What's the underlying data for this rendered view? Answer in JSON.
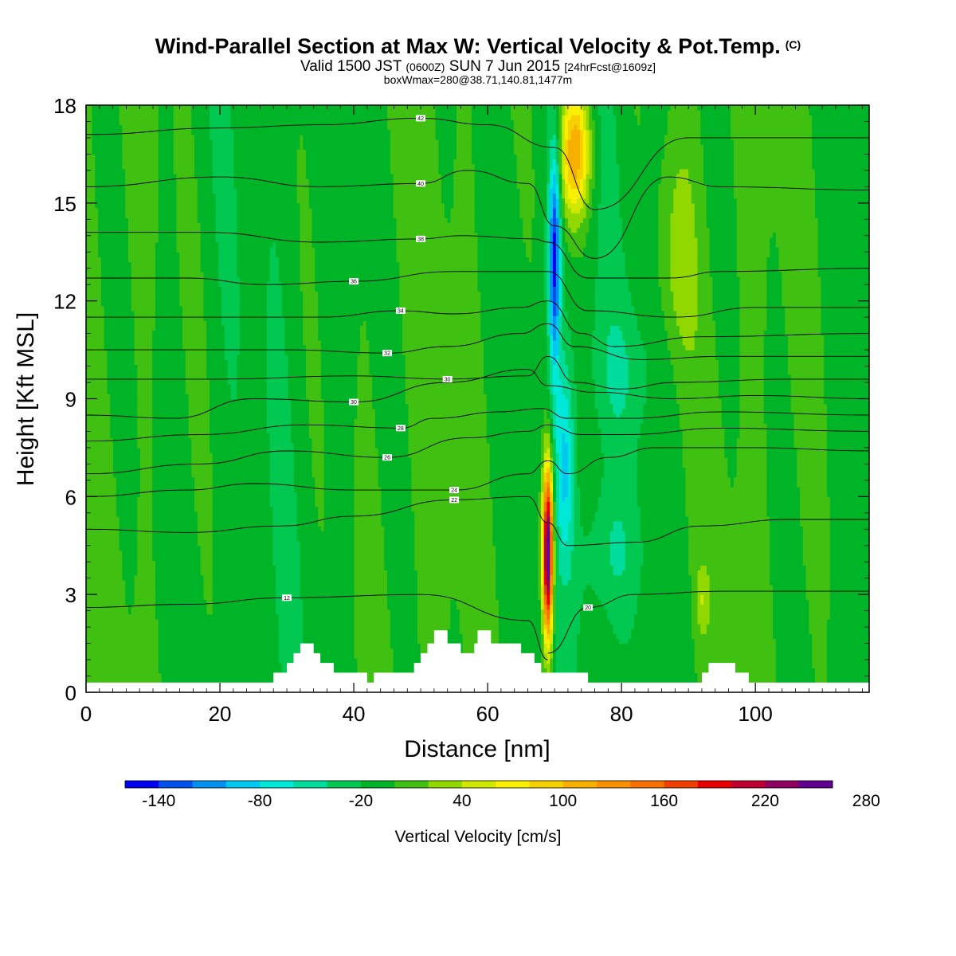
{
  "header": {
    "title": "Wind-Parallel Section at Max W: Vertical Velocity & Pot.Temp.",
    "copyright": "(C)",
    "valid_prefix": "Valid 1500 JST",
    "valid_utc": "(0600Z)",
    "valid_date": "SUN 7 Jun 2015",
    "forecast": "[24hrFcst@1609z]",
    "boxwmax": "boxWmax=280@38.71,140.81,1477m"
  },
  "chart_data": {
    "type": "heatmap",
    "title": "Wind-Parallel Section at Max W: Vertical Velocity & Pot.Temp.",
    "xlabel": "Distance [nm]",
    "ylabel": "Height [Kft MSL]",
    "xlim": [
      0,
      117
    ],
    "ylim": [
      0,
      18
    ],
    "x_ticks": [
      "0",
      "20",
      "40",
      "60",
      "80",
      "100"
    ],
    "y_ticks": [
      "0",
      "3",
      "6",
      "9",
      "12",
      "15",
      "18"
    ],
    "colorbar": {
      "title": "Vertical Velocity [cm/s]",
      "labels": [
        "-140",
        "-80",
        "-20",
        "40",
        "100",
        "160",
        "220",
        "280"
      ],
      "colors": [
        "#0000f0",
        "#0050f0",
        "#0090f0",
        "#00c8f0",
        "#00e8d8",
        "#00dc9c",
        "#00c850",
        "#00b428",
        "#40c010",
        "#90d800",
        "#d0e800",
        "#f8f000",
        "#f8d000",
        "#f8b000",
        "#f89000",
        "#f87000",
        "#f04000",
        "#e80000",
        "#c00030",
        "#900060",
        "#600090"
      ]
    },
    "background_value": -5,
    "features": [
      {
        "name": "strong updraft",
        "x": 69,
        "y_range": [
          1.0,
          7.8
        ],
        "peak": 280
      },
      {
        "name": "upper updraft",
        "x": 73,
        "y_range": [
          14.0,
          18.0
        ],
        "peak": 130
      },
      {
        "name": "downdraft",
        "x": 70,
        "y_range": [
          9.0,
          17.7
        ],
        "peak": -130
      },
      {
        "name": "weak updraft",
        "x": 88,
        "y_range": [
          9.0,
          17.0
        ],
        "peak": 40
      },
      {
        "name": "weak updraft",
        "x": 92,
        "y_range": [
          1.5,
          3.5
        ],
        "peak": 40
      }
    ],
    "terrain": [
      [
        0,
        0.3
      ],
      [
        28,
        0.3
      ],
      [
        28,
        0.6
      ],
      [
        30,
        0.6
      ],
      [
        30,
        0.9
      ],
      [
        31,
        0.9
      ],
      [
        31,
        1.2
      ],
      [
        32,
        1.2
      ],
      [
        32,
        1.5
      ],
      [
        34,
        1.5
      ],
      [
        34,
        1.2
      ],
      [
        35,
        1.2
      ],
      [
        35,
        0.9
      ],
      [
        37,
        0.9
      ],
      [
        37,
        0.6
      ],
      [
        42,
        0.6
      ],
      [
        42,
        0.3
      ],
      [
        43,
        0.3
      ],
      [
        43,
        0.6
      ],
      [
        49,
        0.6
      ],
      [
        49,
        0.9
      ],
      [
        50,
        0.9
      ],
      [
        50,
        1.2
      ],
      [
        51,
        1.2
      ],
      [
        51,
        1.5
      ],
      [
        52,
        1.5
      ],
      [
        52,
        1.9
      ],
      [
        54,
        1.9
      ],
      [
        54,
        1.5
      ],
      [
        56,
        1.5
      ],
      [
        56,
        1.2
      ],
      [
        58,
        1.2
      ],
      [
        58,
        1.5
      ],
      [
        58.5,
        1.5
      ],
      [
        58.5,
        1.9
      ],
      [
        60.5,
        1.9
      ],
      [
        60.5,
        1.5
      ],
      [
        65,
        1.5
      ],
      [
        65,
        1.2
      ],
      [
        67,
        1.2
      ],
      [
        67,
        0.9
      ],
      [
        68,
        0.9
      ],
      [
        68,
        0.6
      ],
      [
        75,
        0.6
      ],
      [
        75,
        0.3
      ],
      [
        92,
        0.3
      ],
      [
        92,
        0.6
      ],
      [
        93,
        0.6
      ],
      [
        93,
        0.9
      ],
      [
        97,
        0.9
      ],
      [
        97,
        0.6
      ],
      [
        99,
        0.6
      ],
      [
        99,
        0.3
      ],
      [
        117,
        0.3
      ]
    ],
    "theta_contours": [
      {
        "label": "12",
        "points": [
          [
            0,
            2.6
          ],
          [
            15,
            2.7
          ],
          [
            30,
            2.9
          ],
          [
            50,
            3.0
          ],
          [
            66,
            2.2
          ],
          [
            69,
            1.0
          ]
        ]
      },
      {
        "label": "20",
        "points": [
          [
            69,
            1.2
          ],
          [
            75,
            2.6
          ],
          [
            82,
            3.0
          ],
          [
            95,
            3.1
          ],
          [
            117,
            3.1
          ]
        ]
      },
      {
        "label": "22",
        "points": [
          [
            0,
            5.0
          ],
          [
            15,
            4.9
          ],
          [
            29,
            5.1
          ],
          [
            40,
            5.4
          ],
          [
            55,
            5.9
          ],
          [
            66,
            6.0
          ],
          [
            69,
            5.2
          ],
          [
            72,
            4.5
          ],
          [
            82,
            4.6
          ],
          [
            92,
            5.1
          ],
          [
            105,
            5.3
          ],
          [
            117,
            5.3
          ]
        ]
      },
      {
        "label": "24",
        "points": [
          [
            0,
            6.0
          ],
          [
            15,
            6.2
          ],
          [
            25,
            6.4
          ],
          [
            40,
            6.2
          ],
          [
            55,
            6.2
          ],
          [
            66,
            6.7
          ],
          [
            69,
            7.1
          ],
          [
            72,
            6.7
          ],
          [
            78,
            7.2
          ],
          [
            85,
            7.5
          ],
          [
            100,
            7.5
          ],
          [
            117,
            7.4
          ]
        ]
      },
      {
        "label": "26",
        "points": [
          [
            0,
            6.7
          ],
          [
            17,
            7.0
          ],
          [
            30,
            7.4
          ],
          [
            45,
            7.2
          ],
          [
            57,
            7.8
          ],
          [
            66,
            8.0
          ],
          [
            69,
            8.2
          ],
          [
            74,
            7.9
          ],
          [
            81,
            7.9
          ],
          [
            95,
            8.1
          ],
          [
            117,
            8.0
          ]
        ]
      },
      {
        "label": "28",
        "points": [
          [
            0,
            7.7
          ],
          [
            17,
            7.9
          ],
          [
            33,
            8.2
          ],
          [
            47,
            8.1
          ],
          [
            52,
            8.4
          ],
          [
            62,
            8.6
          ],
          [
            68,
            8.7
          ],
          [
            72,
            8.4
          ],
          [
            81,
            8.4
          ],
          [
            95,
            8.6
          ],
          [
            117,
            8.5
          ]
        ]
      },
      {
        "label": "30",
        "points": [
          [
            0,
            8.5
          ],
          [
            13,
            8.4
          ],
          [
            25,
            9.0
          ],
          [
            40,
            8.9
          ],
          [
            54,
            9.5
          ],
          [
            66,
            9.9
          ],
          [
            69,
            9.4
          ],
          [
            76,
            9.2
          ],
          [
            88,
            9.0
          ],
          [
            100,
            9.1
          ],
          [
            117,
            9.0
          ]
        ]
      },
      {
        "label": "30",
        "points": [
          [
            0,
            9.6
          ],
          [
            20,
            9.6
          ],
          [
            40,
            9.7
          ],
          [
            54,
            9.6
          ],
          [
            66,
            9.7
          ],
          [
            69,
            10.3
          ],
          [
            73,
            9.5
          ],
          [
            80,
            9.3
          ],
          [
            88,
            9.5
          ],
          [
            105,
            9.6
          ],
          [
            117,
            9.6
          ]
        ]
      },
      {
        "label": "32",
        "points": [
          [
            0,
            10.5
          ],
          [
            15,
            10.5
          ],
          [
            30,
            10.5
          ],
          [
            45,
            10.4
          ],
          [
            54,
            10.6
          ],
          [
            65,
            11.0
          ],
          [
            69,
            11.3
          ],
          [
            73,
            10.6
          ],
          [
            83,
            10.2
          ],
          [
            95,
            10.3
          ],
          [
            117,
            10.3
          ]
        ]
      },
      {
        "label": "34",
        "points": [
          [
            0,
            11.5
          ],
          [
            21,
            11.5
          ],
          [
            35,
            11.5
          ],
          [
            47,
            11.7
          ],
          [
            55,
            11.6
          ],
          [
            65,
            11.8
          ],
          [
            69,
            12.0
          ],
          [
            74,
            11.0
          ],
          [
            79,
            10.6
          ],
          [
            92,
            10.9
          ],
          [
            117,
            11.0
          ]
        ]
      },
      {
        "label": "36",
        "points": [
          [
            0,
            12.7
          ],
          [
            15,
            12.7
          ],
          [
            27,
            12.5
          ],
          [
            40,
            12.6
          ],
          [
            55,
            12.9
          ],
          [
            66,
            12.9
          ],
          [
            69,
            12.9
          ],
          [
            75,
            11.7
          ],
          [
            88,
            11.5
          ],
          [
            100,
            11.8
          ],
          [
            117,
            11.8
          ]
        ]
      },
      {
        "label": "38",
        "points": [
          [
            0,
            14.1
          ],
          [
            18,
            14.1
          ],
          [
            35,
            13.8
          ],
          [
            50,
            13.9
          ],
          [
            56,
            14.0
          ],
          [
            67,
            13.9
          ],
          [
            69,
            13.8
          ],
          [
            75,
            12.7
          ],
          [
            87,
            12.7
          ],
          [
            95,
            12.9
          ],
          [
            117,
            13.0
          ]
        ]
      },
      {
        "label": "40",
        "points": [
          [
            0,
            15.5
          ],
          [
            20,
            15.8
          ],
          [
            35,
            15.5
          ],
          [
            50,
            15.6
          ],
          [
            57,
            16.0
          ],
          [
            66,
            15.6
          ],
          [
            70,
            14.3
          ],
          [
            76,
            13.3
          ],
          [
            87,
            15.8
          ],
          [
            95,
            15.5
          ],
          [
            117,
            15.4
          ]
        ]
      },
      {
        "label": "42",
        "points": [
          [
            0,
            17.1
          ],
          [
            20,
            17.3
          ],
          [
            35,
            17.4
          ],
          [
            50,
            17.6
          ],
          [
            60,
            17.4
          ],
          [
            70,
            16.7
          ],
          [
            76,
            14.8
          ],
          [
            90,
            17.0
          ],
          [
            105,
            17.0
          ],
          [
            117,
            17.0
          ]
        ]
      }
    ]
  }
}
